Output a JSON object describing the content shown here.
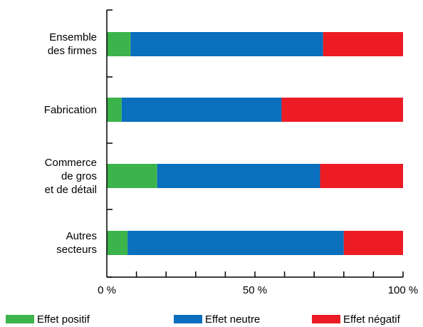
{
  "chart_data": {
    "type": "bar",
    "orientation": "horizontal",
    "stacked": true,
    "title": "",
    "xlabel": "",
    "ylabel": "",
    "xlim": [
      0,
      100
    ],
    "x_tick_labels": [
      "0 %",
      "50 %",
      "100 %"
    ],
    "categories": [
      [
        "Ensemble",
        "des firmes"
      ],
      [
        "Fabrication"
      ],
      [
        "Commerce",
        "de gros",
        "et de détail"
      ],
      [
        "Autres",
        "secteurs"
      ]
    ],
    "series": [
      {
        "name": "Effet positif",
        "color": "#3cb44b",
        "values": [
          8,
          5,
          17,
          7
        ]
      },
      {
        "name": "Effet neutre",
        "color": "#0a6fbd",
        "values": [
          65,
          54,
          55,
          73
        ]
      },
      {
        "name": "Effet négatif",
        "color": "#ed1c24",
        "values": [
          27,
          41,
          28,
          20
        ]
      }
    ],
    "legend_position": "bottom"
  }
}
